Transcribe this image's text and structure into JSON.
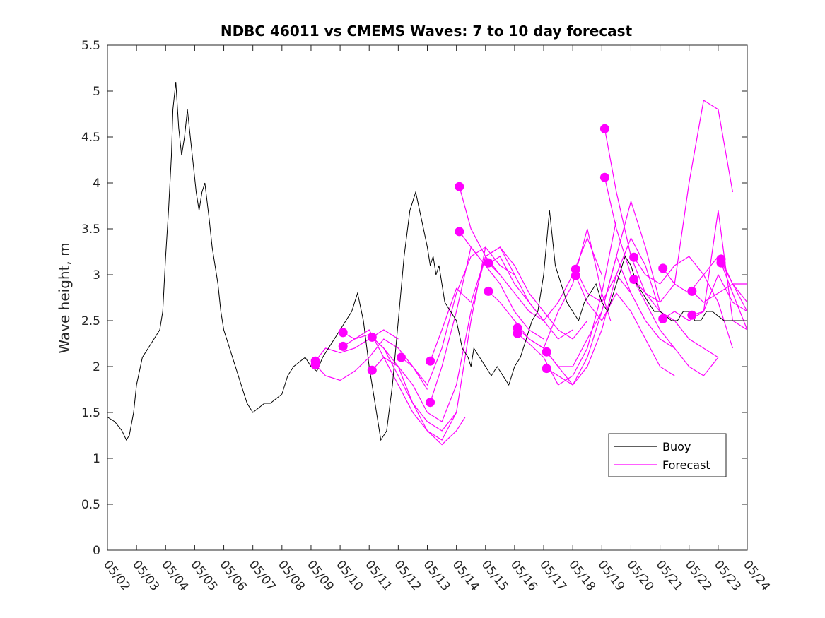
{
  "chart_data": {
    "type": "line",
    "title": "NDBC 46011 vs CMEMS Waves: 7 to 10 day forecast",
    "xlabel": "",
    "ylabel": "Wave height, m",
    "xlim": [
      "05/02",
      "05/24"
    ],
    "ylim": [
      0,
      5.5
    ],
    "x_ticks": [
      "05/02",
      "05/03",
      "05/04",
      "05/05",
      "05/06",
      "05/07",
      "05/08",
      "05/09",
      "05/10",
      "05/11",
      "05/12",
      "05/13",
      "05/14",
      "05/15",
      "05/16",
      "05/17",
      "05/18",
      "05/19",
      "05/20",
      "05/21",
      "05/22",
      "05/23",
      "05/24"
    ],
    "y_ticks": [
      "0",
      "0.5",
      "1",
      "1.5",
      "2",
      "2.5",
      "3",
      "3.5",
      "4",
      "4.5",
      "5",
      "5.5"
    ],
    "grid": false,
    "legend": {
      "position": "bottom-right",
      "entries": [
        "Buoy",
        "Forecast"
      ]
    },
    "colors": {
      "buoy": "#000000",
      "forecast": "#ff00ff"
    },
    "series": [
      {
        "name": "Buoy",
        "x_day_offset_from_05_02": [
          0,
          0.25,
          0.5,
          0.65,
          0.75,
          0.9,
          1,
          1.2,
          1.4,
          1.6,
          1.8,
          1.9,
          2,
          2.1,
          2.2,
          2.25,
          2.35,
          2.45,
          2.55,
          2.65,
          2.75,
          2.85,
          2.95,
          3.05,
          3.15,
          3.25,
          3.35,
          3.5,
          3.6,
          3.7,
          3.8,
          3.9,
          4,
          4.2,
          4.4,
          4.6,
          4.8,
          5,
          5.2,
          5.4,
          5.6,
          5.8,
          6,
          6.2,
          6.4,
          6.6,
          6.8,
          7,
          7.2,
          7.4,
          7.6,
          7.8,
          8,
          8.2,
          8.4,
          8.6,
          8.8,
          9,
          9.2,
          9.4,
          9.6,
          9.8,
          10,
          10.2,
          10.4,
          10.6,
          10.8,
          11,
          11.1,
          11.2,
          11.3,
          11.4,
          11.5,
          11.6,
          11.8,
          12,
          12.2,
          12.4,
          12.5,
          12.6,
          12.8,
          13,
          13.2,
          13.4,
          13.6,
          13.8,
          14,
          14.2,
          14.4,
          14.6,
          14.8,
          15,
          15.2,
          15.4,
          15.6,
          15.8,
          16,
          16.2,
          16.4,
          16.6,
          16.8,
          17,
          17.2,
          17.4,
          17.6,
          17.8,
          18,
          18.2,
          18.4,
          18.6,
          18.8,
          19,
          19.2,
          19.4,
          19.6,
          19.8,
          20,
          20.2,
          20.4,
          20.6,
          20.8,
          21,
          21.2,
          21.4,
          21.6,
          21.8,
          22
        ],
        "values": [
          1.45,
          1.4,
          1.3,
          1.2,
          1.25,
          1.5,
          1.8,
          2.1,
          2.2,
          2.3,
          2.4,
          2.6,
          3.2,
          3.7,
          4.3,
          4.8,
          5.1,
          4.6,
          4.3,
          4.5,
          4.8,
          4.5,
          4.2,
          3.9,
          3.7,
          3.9,
          4.0,
          3.6,
          3.3,
          3.1,
          2.9,
          2.6,
          2.4,
          2.2,
          2.0,
          1.8,
          1.6,
          1.5,
          1.55,
          1.6,
          1.6,
          1.65,
          1.7,
          1.9,
          2.0,
          2.05,
          2.1,
          2.0,
          1.95,
          2.1,
          2.2,
          2.3,
          2.4,
          2.5,
          2.6,
          2.8,
          2.5,
          2.0,
          1.6,
          1.2,
          1.3,
          1.8,
          2.5,
          3.2,
          3.7,
          3.9,
          3.6,
          3.3,
          3.1,
          3.2,
          3.0,
          3.1,
          2.9,
          2.7,
          2.6,
          2.5,
          2.2,
          2.1,
          2.0,
          2.2,
          2.1,
          2.0,
          1.9,
          2.0,
          1.9,
          1.8,
          2.0,
          2.1,
          2.3,
          2.5,
          2.6,
          3.0,
          3.7,
          3.1,
          2.9,
          2.7,
          2.6,
          2.5,
          2.7,
          2.8,
          2.9,
          2.7,
          2.6,
          2.8,
          3.0,
          3.2,
          3.1,
          2.9,
          2.8,
          2.7,
          2.6,
          2.6,
          2.55,
          2.5,
          2.5,
          2.6,
          2.6,
          2.5,
          2.5,
          2.6,
          2.6,
          2.55,
          2.5,
          2.5,
          2.5,
          2.5,
          2.5
        ]
      },
      {
        "name": "Forecast",
        "note_series_are_runs": true,
        "runs": [
          {
            "x": [
              7.15,
              7.5,
              8.0,
              8.5,
              9.0,
              9.5,
              10.0
            ],
            "values": [
              2.06,
              2.2,
              2.15,
              2.2,
              2.3,
              2.4,
              2.3
            ]
          },
          {
            "x": [
              7.15,
              7.5,
              8.0,
              8.5,
              9.0,
              9.5,
              10.0,
              10.5,
              11.0
            ],
            "values": [
              2.02,
              1.9,
              1.85,
              1.95,
              2.1,
              2.3,
              2.2,
              2.0,
              1.75
            ]
          },
          {
            "x": [
              8.1,
              8.5,
              9.0,
              9.5,
              10.0,
              10.5,
              11.0,
              11.5,
              12.0
            ],
            "values": [
              2.37,
              2.3,
              2.35,
              2.2,
              1.9,
              1.6,
              1.4,
              1.3,
              1.5
            ]
          },
          {
            "x": [
              8.1,
              8.5,
              9.0,
              9.5,
              10.0,
              10.5,
              11.0,
              11.5,
              12.0,
              12.3
            ],
            "values": [
              2.22,
              2.3,
              2.4,
              2.1,
              1.8,
              1.5,
              1.3,
              1.15,
              1.3,
              1.45
            ]
          },
          {
            "x": [
              9.1,
              9.5,
              10.0,
              10.5,
              11.0,
              11.5,
              12.0,
              12.5,
              13.0
            ],
            "values": [
              2.32,
              2.2,
              2.0,
              1.6,
              1.3,
              1.2,
              1.5,
              2.5,
              3.3
            ]
          },
          {
            "x": [
              9.1,
              9.5,
              10.0,
              10.5,
              11.0,
              11.5,
              12.0,
              12.5,
              13.0,
              13.5
            ],
            "values": [
              1.96,
              2.1,
              2.0,
              1.8,
              1.5,
              1.4,
              1.8,
              2.6,
              3.2,
              3.0
            ]
          },
          {
            "x": [
              10.1,
              10.5,
              11.0,
              11.5,
              12.0,
              12.5,
              13.0,
              13.5,
              14.0
            ],
            "values": [
              2.1,
              2.0,
              1.8,
              2.2,
              2.8,
              3.2,
              3.3,
              3.1,
              3.0
            ]
          },
          {
            "x": [
              11.1,
              11.5,
              12.0,
              12.5,
              13.0,
              13.5,
              14.0,
              14.5,
              15.0
            ],
            "values": [
              2.06,
              2.4,
              2.85,
              2.7,
              3.2,
              3.3,
              3.0,
              2.7,
              2.5
            ]
          },
          {
            "x": [
              11.1,
              11.5,
              12.0,
              12.5,
              13.0,
              13.5,
              14.0,
              14.5,
              15.0
            ],
            "values": [
              1.61,
              2.0,
              2.6,
              3.3,
              3.1,
              2.9,
              2.6,
              2.4,
              2.3
            ]
          },
          {
            "x": [
              12.1,
              12.5,
              13.0,
              13.5,
              14.0,
              14.5,
              15.0,
              15.5,
              16.0,
              16.5
            ],
            "values": [
              3.96,
              3.5,
              3.2,
              3.3,
              3.1,
              2.8,
              2.6,
              2.4,
              2.3,
              2.5
            ]
          },
          {
            "x": [
              12.1,
              12.5,
              13.0,
              13.5,
              14.0,
              14.5,
              15.0,
              15.5,
              16.0
            ],
            "values": [
              3.47,
              3.3,
              3.1,
              3.2,
              2.9,
              2.7,
              2.5,
              2.3,
              2.4
            ]
          },
          {
            "x": [
              13.1,
              13.5,
              14.0,
              14.5,
              15.0,
              15.5,
              16.0,
              16.5,
              17.0
            ],
            "values": [
              3.13,
              3.0,
              2.8,
              2.6,
              2.5,
              2.7,
              3.0,
              3.4,
              3.0
            ]
          },
          {
            "x": [
              13.1,
              13.5,
              14.0,
              14.5,
              15.0,
              15.5,
              16.0,
              16.5,
              17.0,
              17.3
            ],
            "values": [
              2.82,
              2.7,
              2.5,
              2.3,
              2.2,
              2.6,
              2.9,
              3.5,
              2.8,
              2.5
            ]
          },
          {
            "x": [
              14.1,
              14.5,
              15.0,
              15.5,
              16.0,
              16.5,
              17.0,
              17.5,
              18.0
            ],
            "values": [
              2.42,
              2.3,
              2.2,
              2.0,
              2.0,
              2.3,
              2.6,
              3.2,
              2.8
            ]
          },
          {
            "x": [
              14.1,
              14.5,
              15.0,
              15.5,
              16.0,
              16.5,
              17.0,
              17.5
            ],
            "values": [
              2.36,
              2.25,
              2.1,
              1.8,
              1.9,
              2.2,
              2.8,
              3.6
            ]
          },
          {
            "x": [
              15.1,
              15.5,
              16.0,
              16.5,
              17.0,
              17.5,
              18.0,
              18.5,
              19.0
            ],
            "values": [
              2.16,
              2.0,
              1.8,
              2.0,
              2.4,
              3.0,
              3.4,
              3.1,
              2.6
            ]
          },
          {
            "x": [
              15.1,
              15.5,
              16.0,
              16.5,
              17.0,
              17.5,
              18.0,
              18.5,
              19.0
            ],
            "values": [
              1.98,
              1.9,
              1.8,
              2.1,
              2.6,
              3.2,
              3.8,
              3.3,
              2.7
            ]
          },
          {
            "x": [
              16.1,
              16.5,
              17.0,
              17.5,
              18.0,
              18.5,
              19.0,
              19.5
            ],
            "values": [
              3.06,
              2.8,
              2.7,
              3.0,
              2.8,
              2.5,
              2.3,
              2.2
            ]
          },
          {
            "x": [
              16.1,
              16.5,
              17.0,
              17.5,
              18.0,
              18.5,
              19.0,
              19.5
            ],
            "values": [
              2.99,
              2.7,
              2.5,
              2.8,
              2.6,
              2.3,
              2.0,
              1.9
            ]
          },
          {
            "x": [
              17.1,
              17.5,
              18.0,
              18.5,
              19.0,
              19.5,
              20.0,
              20.5,
              21.0
            ],
            "values": [
              4.59,
              3.9,
              3.2,
              2.8,
              2.6,
              2.5,
              2.3,
              2.2,
              2.1
            ]
          },
          {
            "x": [
              17.1,
              17.5,
              18.0,
              18.5,
              19.0,
              19.5,
              20.0,
              20.5,
              21.0
            ],
            "values": [
              4.06,
              3.5,
              3.0,
              2.7,
              2.4,
              2.2,
              2.0,
              1.9,
              2.1
            ]
          },
          {
            "x": [
              18.1,
              18.5,
              19.0,
              19.5,
              20.0,
              20.5,
              21.0,
              21.5
            ],
            "values": [
              3.19,
              3.0,
              2.9,
              3.1,
              3.2,
              3.0,
              2.7,
              2.2
            ]
          },
          {
            "x": [
              18.1,
              18.5,
              19.0,
              19.5,
              20.0,
              20.5,
              21.0,
              21.5
            ],
            "values": [
              2.95,
              2.8,
              2.7,
              2.9,
              4.0,
              4.9,
              4.8,
              3.9
            ]
          },
          {
            "x": [
              19.1,
              19.5,
              20.0,
              20.5,
              21.0,
              21.5,
              22.0
            ],
            "values": [
              3.07,
              2.9,
              2.8,
              3.0,
              3.2,
              2.9,
              2.7
            ]
          },
          {
            "x": [
              19.1,
              19.5,
              20.0,
              20.5,
              21.0,
              21.5,
              22.0
            ],
            "values": [
              2.52,
              2.6,
              2.5,
              2.6,
              3.7,
              2.5,
              2.4
            ]
          },
          {
            "x": [
              20.1,
              20.5,
              21.0,
              21.5,
              22.0
            ],
            "values": [
              2.82,
              2.7,
              2.8,
              2.9,
              2.9
            ]
          },
          {
            "x": [
              20.1,
              20.5,
              21.0,
              21.5,
              22.0
            ],
            "values": [
              2.56,
              2.6,
              3.0,
              2.7,
              2.6
            ]
          },
          {
            "x": [
              21.1,
              21.5,
              22.0
            ],
            "values": [
              3.17,
              2.9,
              2.6
            ]
          },
          {
            "x": [
              21.1,
              21.5,
              22.0
            ],
            "values": [
              3.13,
              2.8,
              2.4
            ]
          }
        ]
      }
    ]
  }
}
